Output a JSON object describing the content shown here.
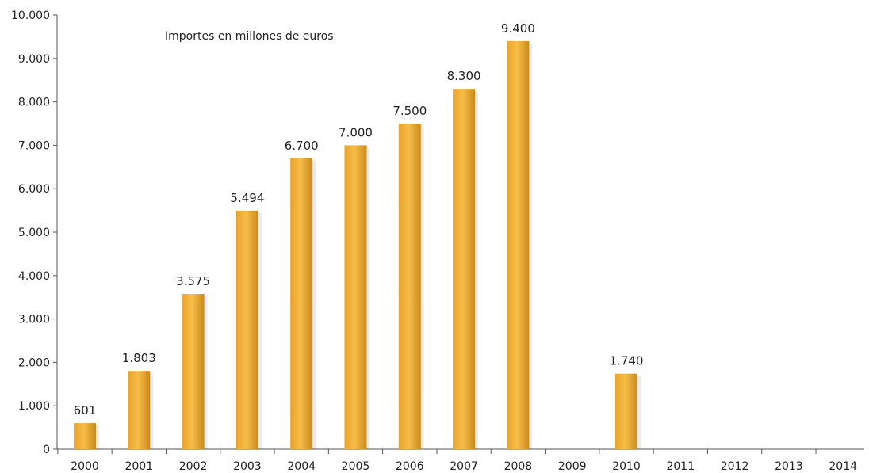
{
  "chart_data": {
    "type": "bar",
    "title": "",
    "annotation": "Importes en millones de euros",
    "xlabel": "",
    "ylabel": "",
    "categories": [
      "2000",
      "2001",
      "2002",
      "2003",
      "2004",
      "2005",
      "2006",
      "2007",
      "2008",
      "2009",
      "2010",
      "2011",
      "2012",
      "2013",
      "2014"
    ],
    "values": [
      601,
      1803,
      3575,
      5494,
      6700,
      7000,
      7500,
      8300,
      9400,
      null,
      1740,
      null,
      null,
      null,
      null
    ],
    "value_labels": [
      "601",
      "1.803",
      "3.575",
      "5.494",
      "6.700",
      "7.000",
      "7.500",
      "8.300",
      "9.400",
      "",
      "1.740",
      "",
      "",
      "",
      ""
    ],
    "ylim": [
      0,
      10000
    ],
    "yticks": [
      0,
      1000,
      2000,
      3000,
      4000,
      5000,
      6000,
      7000,
      8000,
      9000,
      10000
    ],
    "ytick_labels": [
      "0",
      "1.000",
      "2.000",
      "3.000",
      "4.000",
      "5.000",
      "6.000",
      "7.000",
      "8.000",
      "9.000",
      "10.000"
    ],
    "grid": false,
    "legend": "none",
    "colors": {
      "bar_light": "#f2b43c",
      "bar_dark": "#c98a1c",
      "axis": "#555555",
      "text": "#222222"
    }
  }
}
